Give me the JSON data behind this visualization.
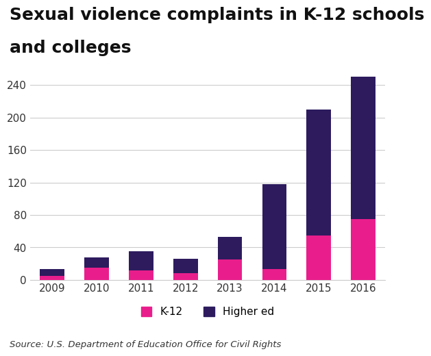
{
  "years": [
    "2009",
    "2010",
    "2011",
    "2012",
    "2013",
    "2014",
    "2015",
    "2016"
  ],
  "k12": [
    5,
    15,
    12,
    8,
    25,
    13,
    55,
    75
  ],
  "higher_ed": [
    8,
    13,
    23,
    18,
    28,
    105,
    155,
    175
  ],
  "k12_color": "#e91e8c",
  "higher_ed_color": "#2d1b5e",
  "title_line1": "Sexual violence complaints in K-12 schools",
  "title_line2": "and colleges",
  "yticks": [
    0,
    40,
    80,
    120,
    160,
    200,
    240
  ],
  "legend_k12": "K-12",
  "legend_higher": "Higher ed",
  "source_text": "Source: U.S. Department of Education Office for Civil Rights",
  "background_color": "#ffffff",
  "grid_color": "#cccccc",
  "title_fontsize": 18,
  "tick_fontsize": 11,
  "legend_fontsize": 11,
  "source_fontsize": 9.5
}
